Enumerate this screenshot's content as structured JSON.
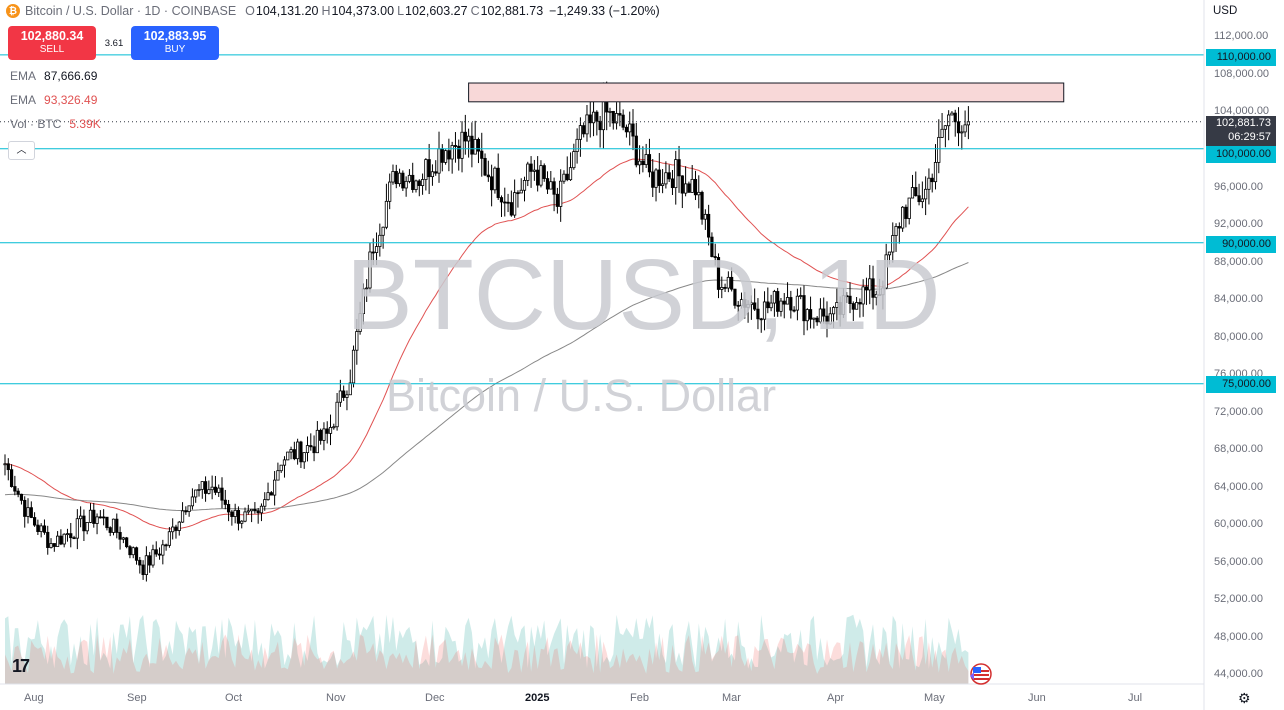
{
  "header": {
    "symbol": "Bitcoin / U.S. Dollar · 1D · COINBASE",
    "open_label": "O",
    "open": "104,131.20",
    "high_label": "H",
    "high": "104,373.00",
    "low_label": "L",
    "low": "102,603.27",
    "close_label": "C",
    "close": "102,881.73",
    "change": "−1,249.33 (−1.20%)"
  },
  "trade": {
    "sell_price": "102,880.34",
    "sell_label": "SELL",
    "spread": "3.61",
    "buy_price": "102,883.95",
    "buy_label": "BUY"
  },
  "indicators": [
    {
      "name": "EMA",
      "value": "87,666.69"
    },
    {
      "name": "EMA",
      "value": "93,326.49"
    },
    {
      "name": "Vol · BTC",
      "value": "5.39K"
    }
  ],
  "watermark": {
    "line1": "BTCUSD, 1D",
    "line2": "Bitcoin / U.S. Dollar"
  },
  "price_scale": {
    "currency": "USD",
    "ticks": [
      "112,000.00",
      "108,000.00",
      "104,000.00",
      "96,000.00",
      "92,000.00",
      "88,000.00",
      "84,000.00",
      "80,000.00",
      "76,000.00",
      "72,000.00",
      "68,000.00",
      "64,000.00",
      "60,000.00",
      "56,000.00",
      "52,000.00",
      "48,000.00",
      "44,000.00"
    ],
    "levels": [
      "110,000.00",
      "100,000.00",
      "90,000.00",
      "75,000.00"
    ],
    "current_price": "102,881.73",
    "countdown": "06:29:57"
  },
  "time_axis": [
    "Aug",
    "Sep",
    "Oct",
    "Nov",
    "Dec",
    "2025",
    "Feb",
    "Mar",
    "Apr",
    "May",
    "Jun",
    "Jul"
  ],
  "colors": {
    "up": "#ffffff",
    "down": "#000000",
    "ema_fast": "#e05252",
    "ema_slow": "#888888",
    "levels": "#00bcd4",
    "zone": "#f8d8d8"
  },
  "chart_data": {
    "type": "candlestick",
    "title": "Bitcoin / U.S. Dollar",
    "interval": "1D",
    "ylim": [
      43000,
      114000
    ],
    "horizontal_levels": [
      110000,
      100000,
      90000,
      75000
    ],
    "resistance_zone": {
      "from": 105000,
      "to": 107000,
      "x_start": "2024-12-12",
      "x_end": "2025-06-11"
    },
    "ohlc_weekly_close": {
      "x": [
        "2024-07-24",
        "2024-07-31",
        "2024-08-07",
        "2024-08-14",
        "2024-08-21",
        "2024-08-28",
        "2024-09-04",
        "2024-09-11",
        "2024-09-18",
        "2024-09-25",
        "2024-10-02",
        "2024-10-09",
        "2024-10-16",
        "2024-10-23",
        "2024-10-30",
        "2024-11-06",
        "2024-11-13",
        "2024-11-20",
        "2024-11-27",
        "2024-12-04",
        "2024-12-11",
        "2024-12-18",
        "2024-12-25",
        "2025-01-01",
        "2025-01-08",
        "2025-01-15",
        "2025-01-22",
        "2025-01-29",
        "2025-02-05",
        "2025-02-12",
        "2025-02-19",
        "2025-02-26",
        "2025-03-05",
        "2025-03-12",
        "2025-03-19",
        "2025-03-26",
        "2025-04-02",
        "2025-04-09",
        "2025-04-16",
        "2025-04-23",
        "2025-04-30",
        "2025-05-07",
        "2025-05-13"
      ],
      "close": [
        66500,
        61000,
        58000,
        59500,
        61000,
        59000,
        55500,
        58000,
        63000,
        64000,
        61000,
        60500,
        67000,
        68000,
        69500,
        76000,
        90000,
        97500,
        97000,
        100000,
        101000,
        97500,
        94500,
        98000,
        94000,
        101000,
        104000,
        102000,
        97000,
        97500,
        96000,
        86000,
        84000,
        83000,
        84500,
        82500,
        82000,
        84500,
        85000,
        93500,
        95500,
        103500,
        102881.73
      ]
    },
    "ema_fast": {
      "name": "EMA",
      "last": 93326.49
    },
    "ema_slow": {
      "name": "EMA",
      "last": 87666.69
    },
    "volume": {
      "name": "Vol · BTC",
      "last": "5.39K"
    }
  }
}
